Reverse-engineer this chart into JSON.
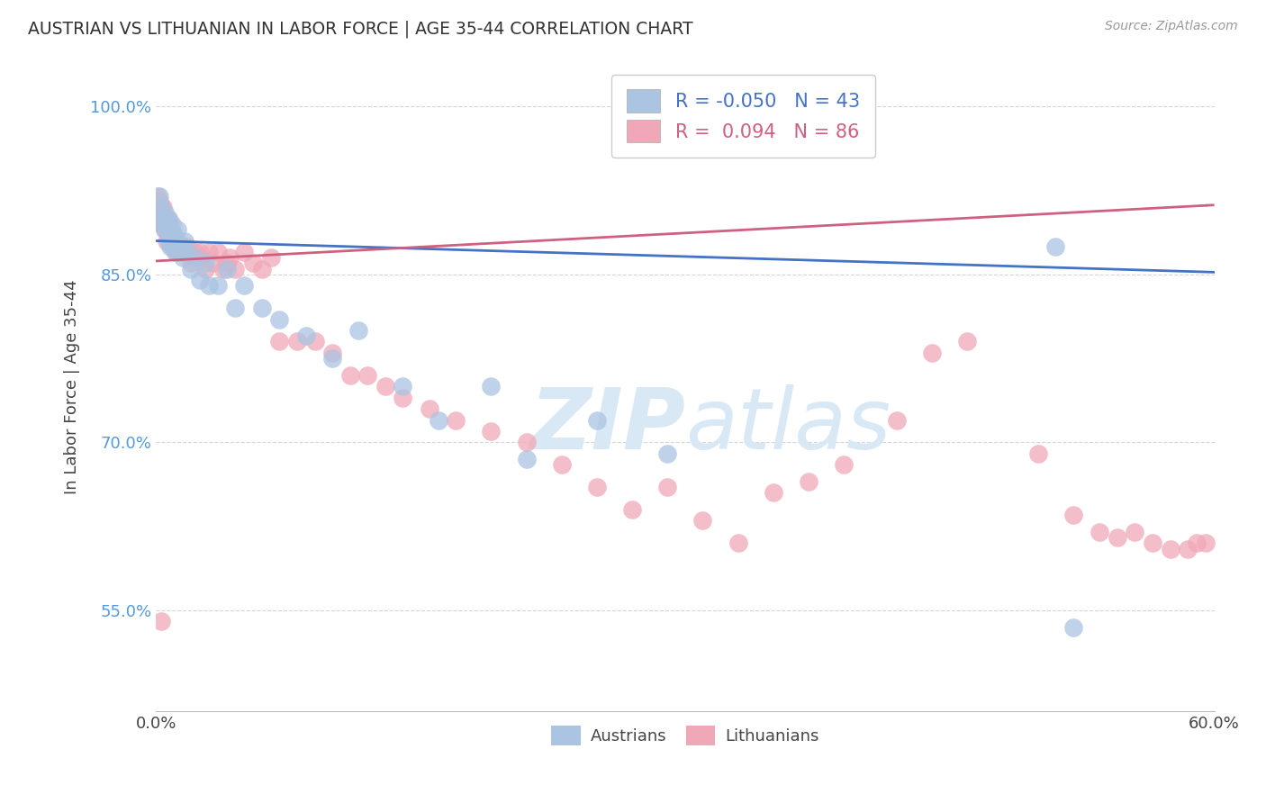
{
  "title": "AUSTRIAN VS LITHUANIAN IN LABOR FORCE | AGE 35-44 CORRELATION CHART",
  "source": "Source: ZipAtlas.com",
  "ylabel": "In Labor Force | Age 35-44",
  "xlim": [
    0.0,
    0.6
  ],
  "ylim": [
    0.46,
    1.04
  ],
  "yticks": [
    0.55,
    0.7,
    0.85,
    1.0
  ],
  "ytick_labels": [
    "55.0%",
    "70.0%",
    "85.0%",
    "100.0%"
  ],
  "xticks": [
    0.0,
    0.6
  ],
  "xtick_labels": [
    "0.0%",
    "60.0%"
  ],
  "R_austrians": -0.05,
  "N_austrians": 43,
  "R_lithuanians": 0.094,
  "N_lithuanians": 86,
  "aus_trend_x0": 0.0,
  "aus_trend_y0": 0.88,
  "aus_trend_x1": 0.6,
  "aus_trend_y1": 0.852,
  "lit_trend_x0": 0.0,
  "lit_trend_y0": 0.862,
  "lit_trend_x1": 0.6,
  "lit_trend_y1": 0.912,
  "lit_trend_solid_end": 0.595,
  "austrians_x": [
    0.002,
    0.003,
    0.004,
    0.004,
    0.005,
    0.005,
    0.006,
    0.007,
    0.007,
    0.008,
    0.008,
    0.009,
    0.01,
    0.01,
    0.011,
    0.012,
    0.013,
    0.014,
    0.015,
    0.016,
    0.018,
    0.02,
    0.022,
    0.025,
    0.028,
    0.03,
    0.035,
    0.04,
    0.045,
    0.05,
    0.06,
    0.07,
    0.085,
    0.1,
    0.115,
    0.14,
    0.16,
    0.19,
    0.21,
    0.25,
    0.29,
    0.51,
    0.52
  ],
  "austrians_y": [
    0.92,
    0.91,
    0.9,
    0.895,
    0.905,
    0.89,
    0.895,
    0.88,
    0.9,
    0.885,
    0.875,
    0.895,
    0.875,
    0.885,
    0.87,
    0.89,
    0.87,
    0.875,
    0.865,
    0.88,
    0.87,
    0.855,
    0.865,
    0.845,
    0.86,
    0.84,
    0.84,
    0.855,
    0.82,
    0.84,
    0.82,
    0.81,
    0.795,
    0.775,
    0.8,
    0.75,
    0.72,
    0.75,
    0.685,
    0.72,
    0.69,
    0.875,
    0.535
  ],
  "lithuanians_x": [
    0.001,
    0.002,
    0.002,
    0.003,
    0.003,
    0.003,
    0.004,
    0.004,
    0.004,
    0.005,
    0.005,
    0.005,
    0.006,
    0.006,
    0.006,
    0.007,
    0.007,
    0.007,
    0.008,
    0.008,
    0.008,
    0.009,
    0.009,
    0.01,
    0.01,
    0.01,
    0.011,
    0.012,
    0.012,
    0.013,
    0.014,
    0.015,
    0.015,
    0.016,
    0.018,
    0.02,
    0.022,
    0.025,
    0.025,
    0.028,
    0.03,
    0.032,
    0.035,
    0.038,
    0.04,
    0.042,
    0.045,
    0.05,
    0.055,
    0.06,
    0.065,
    0.07,
    0.08,
    0.09,
    0.1,
    0.11,
    0.12,
    0.13,
    0.14,
    0.155,
    0.17,
    0.19,
    0.21,
    0.23,
    0.25,
    0.27,
    0.29,
    0.31,
    0.33,
    0.35,
    0.37,
    0.39,
    0.42,
    0.44,
    0.46,
    0.5,
    0.52,
    0.535,
    0.545,
    0.555,
    0.565,
    0.575,
    0.585,
    0.59,
    0.595,
    0.003
  ],
  "lithuanians_y": [
    0.92,
    0.915,
    0.905,
    0.91,
    0.9,
    0.895,
    0.905,
    0.895,
    0.91,
    0.89,
    0.9,
    0.895,
    0.895,
    0.88,
    0.89,
    0.885,
    0.895,
    0.9,
    0.88,
    0.89,
    0.885,
    0.88,
    0.875,
    0.875,
    0.885,
    0.88,
    0.87,
    0.88,
    0.875,
    0.87,
    0.875,
    0.87,
    0.875,
    0.87,
    0.875,
    0.86,
    0.87,
    0.87,
    0.865,
    0.855,
    0.87,
    0.86,
    0.87,
    0.855,
    0.86,
    0.865,
    0.855,
    0.87,
    0.86,
    0.855,
    0.865,
    0.79,
    0.79,
    0.79,
    0.78,
    0.76,
    0.76,
    0.75,
    0.74,
    0.73,
    0.72,
    0.71,
    0.7,
    0.68,
    0.66,
    0.64,
    0.66,
    0.63,
    0.61,
    0.655,
    0.665,
    0.68,
    0.72,
    0.78,
    0.79,
    0.69,
    0.635,
    0.62,
    0.615,
    0.62,
    0.61,
    0.605,
    0.605,
    0.61,
    0.61,
    0.54
  ],
  "bg_color": "#ffffff",
  "grid_color": "#cccccc",
  "austrians_color": "#aac4e2",
  "lithuanians_color": "#f0a8b8",
  "trendline_austrians_color": "#4472c4",
  "trendline_lithuanians_color": "#d06080",
  "watermark_color": "#d8e8f5"
}
